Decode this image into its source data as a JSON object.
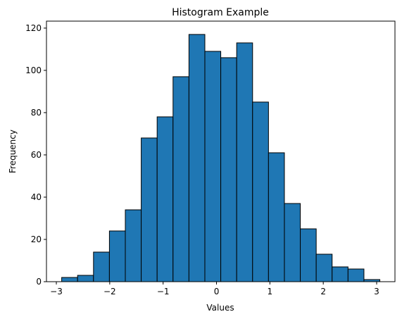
{
  "chart_data": {
    "type": "histogram",
    "title": "Histogram Example",
    "x_label": "Values",
    "y_label": "Frequency",
    "bins": [
      -2.9,
      -2.602,
      -2.304,
      -2.006,
      -1.708,
      -1.41,
      -1.112,
      -0.814,
      -0.516,
      -0.218,
      0.08,
      0.378,
      0.676,
      0.974,
      1.272,
      1.57,
      1.868,
      2.166,
      2.464,
      2.762,
      3.06
    ],
    "values": [
      2,
      3,
      14,
      24,
      34,
      68,
      78,
      97,
      117,
      109,
      106,
      113,
      85,
      61,
      37,
      25,
      13,
      7,
      6,
      1
    ],
    "color": "#1f77b4",
    "edgecolor": "#000000",
    "xlim": [
      -3.185,
      3.343
    ],
    "xticks": [
      {
        "value": -3,
        "label": "−3"
      },
      {
        "value": -2,
        "label": "−2"
      },
      {
        "value": -1,
        "label": "−1"
      },
      0,
      1,
      2,
      3
    ],
    "ylim": [
      0,
      123.3
    ],
    "yticks": [
      0,
      20,
      40,
      60,
      80,
      100,
      120
    ],
    "grid": false
  }
}
